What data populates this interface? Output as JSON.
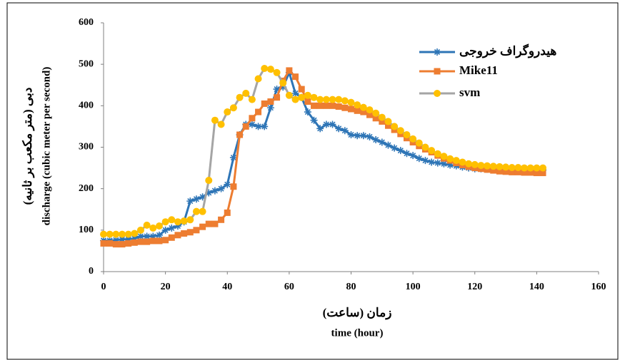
{
  "chart_data": {
    "type": "line",
    "ylabel": [
      "دبی (متر مکعب بر ثانیه)",
      "discharge (cubic meter per second)"
    ],
    "xlabel": [
      "زمان (ساعت)",
      "time (hour)"
    ],
    "x": [
      0,
      2,
      4,
      6,
      8,
      10,
      12,
      14,
      16,
      18,
      20,
      22,
      24,
      26,
      28,
      30,
      32,
      34,
      36,
      38,
      40,
      42,
      44,
      46,
      48,
      50,
      52,
      54,
      56,
      58,
      60,
      62,
      64,
      66,
      68,
      70,
      72,
      74,
      76,
      78,
      80,
      82,
      84,
      86,
      88,
      90,
      92,
      94,
      96,
      98,
      100,
      102,
      104,
      106,
      108,
      110,
      112,
      114,
      116,
      118,
      120,
      122,
      124,
      126,
      128,
      130,
      132,
      134,
      136,
      138,
      140,
      142
    ],
    "series": [
      {
        "name": "هیدروگراف خروجی",
        "color": "#2e75b6",
        "marker": "star",
        "marker_color": "#2e75b6",
        "values": [
          75,
          75,
          76,
          78,
          78,
          80,
          85,
          85,
          85,
          88,
          100,
          105,
          110,
          120,
          170,
          175,
          180,
          190,
          195,
          200,
          210,
          275,
          330,
          355,
          355,
          350,
          350,
          395,
          440,
          445,
          480,
          430,
          420,
          385,
          365,
          345,
          355,
          355,
          345,
          340,
          330,
          328,
          328,
          325,
          318,
          312,
          305,
          298,
          292,
          285,
          280,
          273,
          268,
          264,
          262,
          260,
          257,
          255,
          252,
          250,
          248,
          248,
          247,
          247,
          246,
          246,
          246,
          245,
          245,
          245,
          245,
          245
        ]
      },
      {
        "name": "Mike11",
        "color": "#ed7d31",
        "marker": "square",
        "marker_color": "#ed7d31",
        "values": [
          68,
          68,
          66,
          66,
          68,
          70,
          72,
          72,
          74,
          74,
          76,
          82,
          88,
          92,
          95,
          100,
          108,
          115,
          115,
          125,
          142,
          205,
          330,
          350,
          370,
          385,
          405,
          410,
          420,
          460,
          485,
          470,
          440,
          410,
          400,
          400,
          400,
          400,
          398,
          395,
          392,
          388,
          385,
          378,
          370,
          362,
          352,
          342,
          332,
          322,
          312,
          303,
          295,
          288,
          280,
          273,
          268,
          262,
          257,
          253,
          250,
          248,
          246,
          244,
          242,
          241,
          240,
          240,
          239,
          239,
          238,
          238
        ]
      },
      {
        "name": "svm",
        "color": "#a5a5a5",
        "marker": "circle",
        "marker_color": "#ffc000",
        "values": [
          90,
          90,
          90,
          90,
          90,
          92,
          100,
          112,
          105,
          110,
          120,
          125,
          120,
          122,
          125,
          145,
          145,
          220,
          365,
          355,
          385,
          395,
          420,
          430,
          415,
          465,
          490,
          488,
          480,
          455,
          425,
          415,
          420,
          425,
          420,
          415,
          415,
          415,
          415,
          412,
          408,
          402,
          396,
          390,
          382,
          372,
          362,
          350,
          340,
          330,
          320,
          310,
          300,
          292,
          284,
          278,
          272,
          268,
          264,
          260,
          258,
          256,
          255,
          254,
          253,
          252,
          251,
          251,
          250,
          250,
          250,
          250
        ]
      }
    ],
    "xlim": [
      0,
      160
    ],
    "xticks": [
      0,
      20,
      40,
      60,
      80,
      100,
      120,
      140,
      160
    ],
    "ylim": [
      0,
      600
    ],
    "yticks": [
      0,
      100,
      200,
      300,
      400,
      500,
      600
    ],
    "legend": "top-right",
    "grid": false
  }
}
